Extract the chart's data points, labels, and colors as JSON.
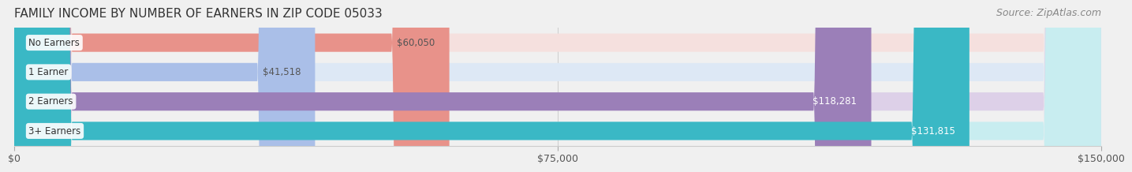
{
  "title": "FAMILY INCOME BY NUMBER OF EARNERS IN ZIP CODE 05033",
  "source": "Source: ZipAtlas.com",
  "categories": [
    "No Earners",
    "1 Earner",
    "2 Earners",
    "3+ Earners"
  ],
  "values": [
    60050,
    41518,
    118281,
    131815
  ],
  "bar_colors": [
    "#e8928a",
    "#aabfe8",
    "#9b7fb8",
    "#3ab8c5"
  ],
  "bar_bg_colors": [
    "#f5e0de",
    "#dde8f5",
    "#ddd0e8",
    "#c8edf0"
  ],
  "label_colors": [
    "#555555",
    "#555555",
    "#ffffff",
    "#ffffff"
  ],
  "xlim": [
    0,
    150000
  ],
  "xticks": [
    0,
    75000,
    150000
  ],
  "xtick_labels": [
    "$0",
    "$75,000",
    "$150,000"
  ],
  "background_color": "#f0f0f0",
  "bar_bg_color": "#e8e8e8",
  "title_fontsize": 11,
  "source_fontsize": 9
}
